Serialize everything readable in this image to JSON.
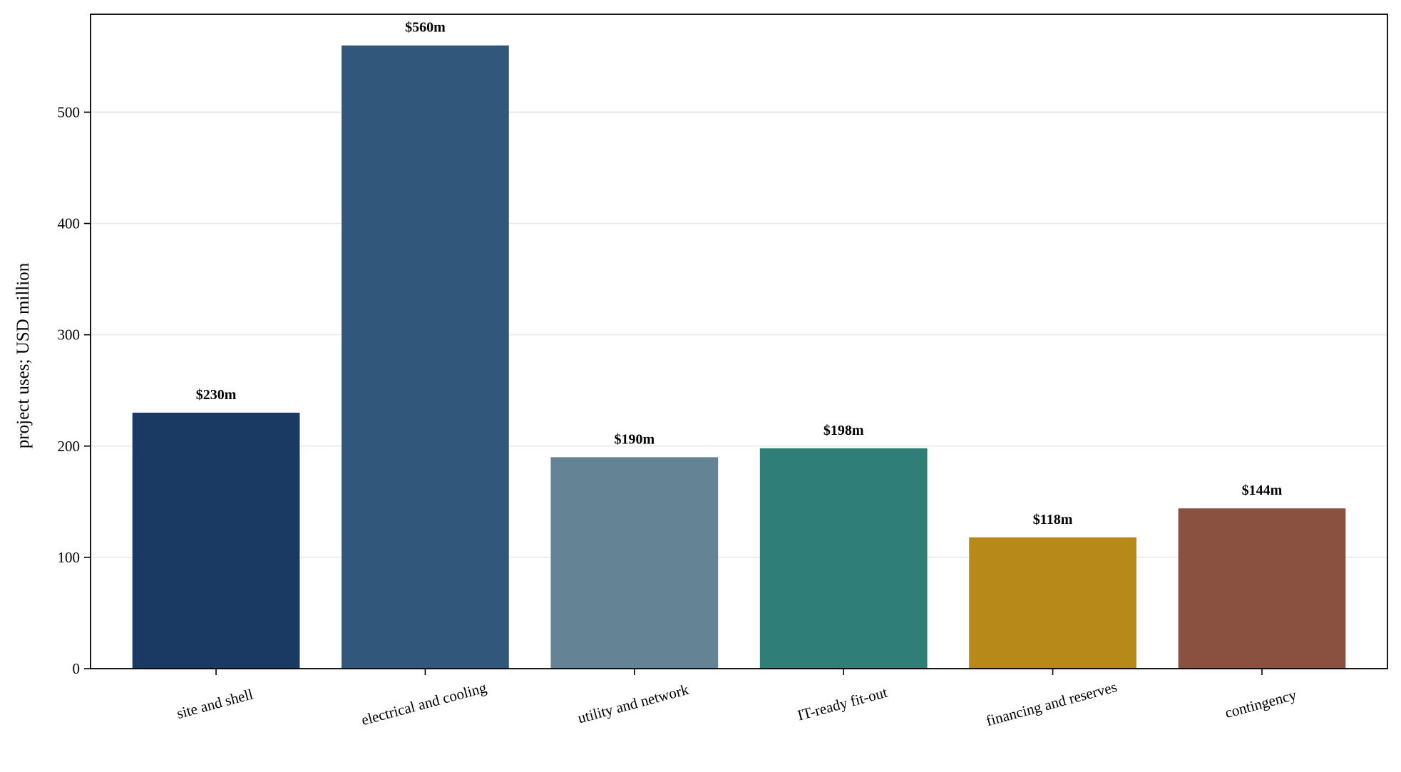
{
  "chart_data": {
    "type": "bar",
    "categories": [
      "site and shell",
      "electrical and cooling",
      "utility and network",
      "IT-ready fit-out",
      "financing and reserves",
      "contingency"
    ],
    "values": [
      230,
      560,
      190,
      198,
      118,
      144
    ],
    "data_labels": [
      "$230m",
      "$560m",
      "$190m",
      "$198m",
      "$118m",
      "$144m"
    ],
    "colors": [
      "#1a3a63",
      "#31587b",
      "#648496",
      "#2f7f78",
      "#b58a18",
      "#8b5140"
    ],
    "title": "",
    "xlabel": "",
    "ylabel": "project uses; USD million",
    "ylim": [
      0,
      588
    ],
    "yticks": [
      0,
      100,
      200,
      300,
      400,
      500
    ],
    "ytick_labels": [
      "0",
      "100",
      "200",
      "300",
      "400",
      "500"
    ],
    "grid": "horizontal",
    "grid_color": "#e8e8e8",
    "legend": "none"
  }
}
